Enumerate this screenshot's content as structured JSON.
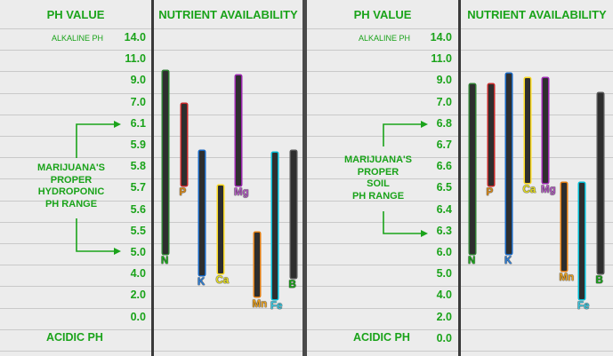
{
  "colors": {
    "green": "#1aa31a",
    "panel": "#ececec",
    "bar": "#2e2e2e"
  },
  "left": {
    "header_ph": "PH VALUE",
    "header_nutrient": "NUTRIENT AVAILABILITY",
    "alkaline": "ALKALINE PH",
    "acidic": "ACIDIC PH",
    "range_label": [
      "MARIJUANA'S",
      "PROPER",
      "HYDROPONIC",
      "PH RANGE"
    ],
    "ph_values": [
      "14.0",
      "11.0",
      "9.0",
      "7.0",
      "6.1",
      "5.9",
      "5.8",
      "5.7",
      "5.6",
      "5.5",
      "5.0",
      "4.0",
      "2.0",
      "0.0"
    ],
    "nutrients": [
      {
        "name": "N",
        "color": "#2e7d32",
        "from_row": 2,
        "to_row": 10.5,
        "label_color": "#1ea81e"
      },
      {
        "name": "P",
        "color": "#c62828",
        "from_row": 3.5,
        "to_row": 7.3,
        "label_color": "#d88a1a"
      },
      {
        "name": "K",
        "color": "#1565c0",
        "from_row": 5.7,
        "to_row": 11.5,
        "label_color": "#2f7fd6"
      },
      {
        "name": "Ca",
        "color": "#f9d71c",
        "from_row": 7.3,
        "to_row": 11.4,
        "label_color": "#e8e020"
      },
      {
        "name": "Mg",
        "color": "#9c27b0",
        "from_row": 2.2,
        "to_row": 7.3,
        "label_color": "#b45cc4"
      },
      {
        "name": "Mn",
        "color": "#e07b10",
        "from_row": 9.5,
        "to_row": 12.5,
        "label_color": "#e8a020"
      },
      {
        "name": "Fe",
        "color": "#00bcd4",
        "from_row": 5.8,
        "to_row": 12.6,
        "label_color": "#39c8e0"
      },
      {
        "name": "B",
        "color": "#555555",
        "from_row": 5.7,
        "to_row": 11.6,
        "label_color": "#1aa31a"
      }
    ]
  },
  "right": {
    "header_ph": "PH VALUE",
    "header_nutrient": "NUTRIENT AVAILABILITY",
    "alkaline": "ALKALINE PH",
    "acidic": "ACIDIC PH",
    "range_label": [
      "MARIJUANA'S",
      "PROPER",
      "SOIL",
      "PH RANGE"
    ],
    "ph_values": [
      "14.0",
      "11.0",
      "9.0",
      "7.0",
      "6.8",
      "6.7",
      "6.6",
      "6.5",
      "6.4",
      "6.3",
      "6.0",
      "5.0",
      "4.0",
      "2.0",
      "0.0"
    ],
    "nutrients": [
      {
        "name": "N",
        "color": "#2e7d32",
        "from_row": 2.6,
        "to_row": 10.5,
        "label_color": "#1ea81e"
      },
      {
        "name": "P",
        "color": "#c62828",
        "from_row": 2.6,
        "to_row": 7.3,
        "label_color": "#d88a1a"
      },
      {
        "name": "K",
        "color": "#1565c0",
        "from_row": 2.1,
        "to_row": 10.5,
        "label_color": "#2f7fd6"
      },
      {
        "name": "Ca",
        "color": "#f9d71c",
        "from_row": 2.3,
        "to_row": 7.2,
        "label_color": "#e8e020"
      },
      {
        "name": "Mg",
        "color": "#9c27b0",
        "from_row": 2.3,
        "to_row": 7.2,
        "label_color": "#b45cc4"
      },
      {
        "name": "Mn",
        "color": "#e07b10",
        "from_row": 7.2,
        "to_row": 11.3,
        "label_color": "#e8a020"
      },
      {
        "name": "Fe",
        "color": "#00bcd4",
        "from_row": 7.2,
        "to_row": 12.6,
        "label_color": "#39c8e0"
      },
      {
        "name": "B",
        "color": "#555555",
        "from_row": 3.0,
        "to_row": 11.4,
        "label_color": "#1aa31a"
      }
    ]
  }
}
